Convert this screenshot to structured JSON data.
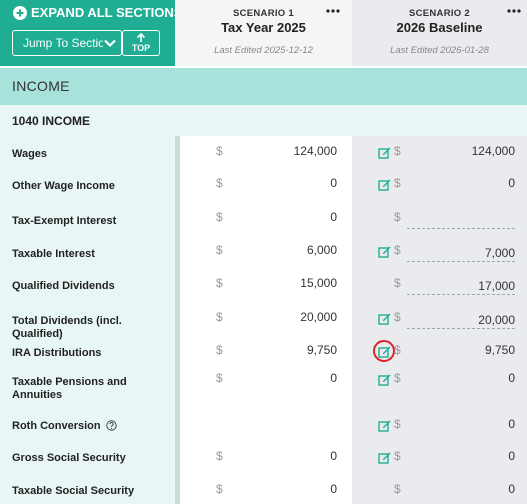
{
  "header": {
    "expand_all_label": "EXPAND ALL SECTIONS",
    "jump_label": "Jump To Section",
    "top_label": "TOP",
    "scenario1": {
      "number": "SCENARIO 1",
      "title": "Tax Year 2025",
      "last_edited": "Last Edited 2025-12-12"
    },
    "scenario2": {
      "number": "SCENARIO 2",
      "title": "2026 Baseline",
      "last_edited": "Last Edited 2026-01-28"
    }
  },
  "sections": {
    "income": "INCOME",
    "income_1040": "1040 INCOME"
  },
  "currency_symbol": "$",
  "rows": [
    {
      "label": "Wages",
      "s1": "124,000",
      "s2": "124,000"
    },
    {
      "label": "Other Wage Income",
      "s1": "0",
      "s2": "0"
    },
    {
      "label": "Tax-Exempt Interest",
      "s1": "0",
      "s2": ""
    },
    {
      "label": "Taxable Interest",
      "s1": "6,000",
      "s2": "7,000"
    },
    {
      "label": "Qualified Dividends",
      "s1": "15,000",
      "s2": "17,000"
    },
    {
      "label": "Total Dividends (incl. Qualified)",
      "s1": "20,000",
      "s2": "20,000"
    },
    {
      "label": "IRA Distributions",
      "s1": "9,750",
      "s2": "9,750"
    },
    {
      "label": "Taxable Pensions and Annuities",
      "s1": "0",
      "s2": "0"
    },
    {
      "label": "Roth Conversion",
      "s1": "",
      "s2": "0"
    },
    {
      "label": "Gross Social Security",
      "s1": "0",
      "s2": "0"
    },
    {
      "label": "Taxable Social Security",
      "s1": "0",
      "s2": "0"
    }
  ],
  "colors": {
    "brand": "#1fae93",
    "section": "#a7e3da",
    "highlight": "#d9262b"
  }
}
